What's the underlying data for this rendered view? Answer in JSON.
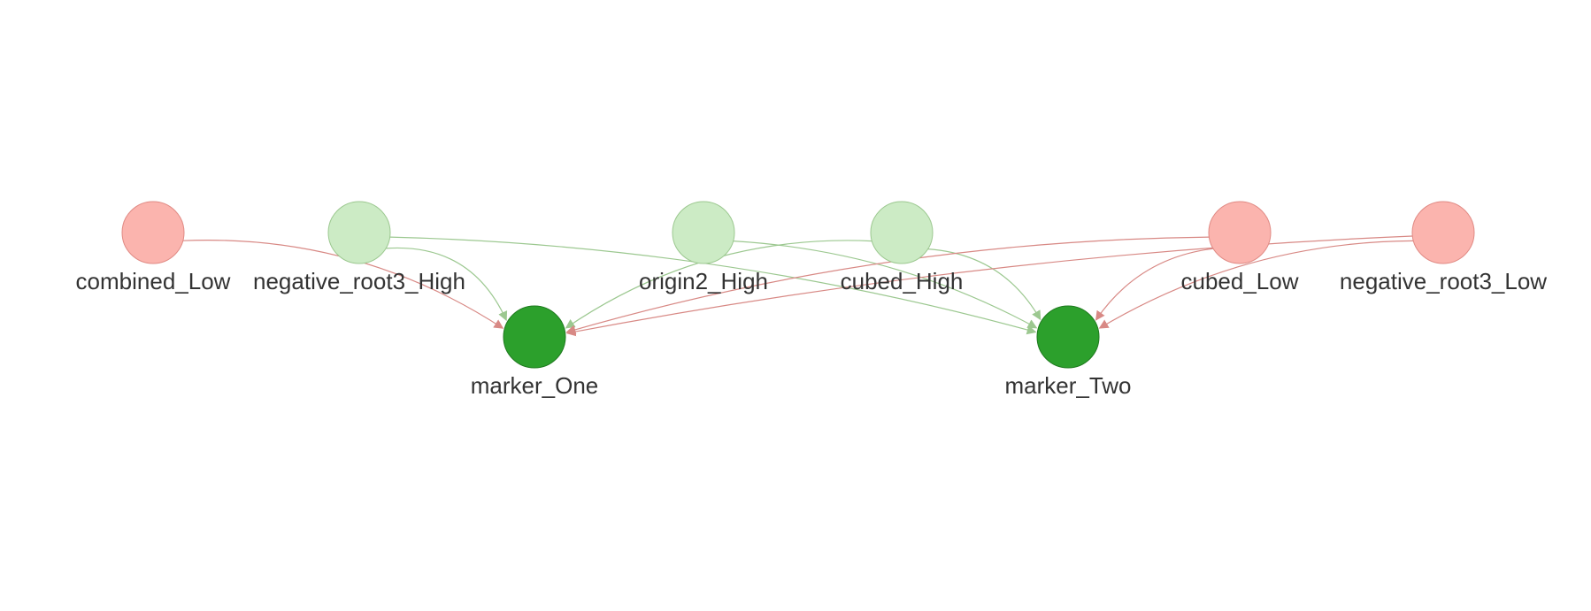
{
  "graph": {
    "colors": {
      "low_fill": "#fbb4ae",
      "low_stroke": "#e08a84",
      "high_fill": "#ccebc5",
      "high_stroke": "#9cc890",
      "marker_fill": "#2ca02c",
      "marker_stroke": "#1f7a1f",
      "edge_low": "#d88985",
      "edge_high": "#9cc890",
      "label": "#333333"
    },
    "nodes": [
      {
        "id": "combined_Low",
        "label": "combined_Low",
        "kind": "low"
      },
      {
        "id": "negative_root3_High",
        "label": "negative_root3_High",
        "kind": "high"
      },
      {
        "id": "origin2_High",
        "label": "origin2_High",
        "kind": "high"
      },
      {
        "id": "cubed_High",
        "label": "cubed_High",
        "kind": "high"
      },
      {
        "id": "cubed_Low",
        "label": "cubed_Low",
        "kind": "low"
      },
      {
        "id": "negative_root3_Low",
        "label": "negative_root3_Low",
        "kind": "low"
      },
      {
        "id": "marker_One",
        "label": "marker_One",
        "kind": "marker"
      },
      {
        "id": "marker_Two",
        "label": "marker_Two",
        "kind": "marker"
      }
    ],
    "edges": [
      {
        "from": "combined_Low",
        "to": "marker_One",
        "kind": "low"
      },
      {
        "from": "negative_root3_High",
        "to": "marker_One",
        "kind": "high"
      },
      {
        "from": "negative_root3_High",
        "to": "marker_Two",
        "kind": "high"
      },
      {
        "from": "origin2_High",
        "to": "marker_Two",
        "kind": "high"
      },
      {
        "from": "cubed_High",
        "to": "marker_One",
        "kind": "high"
      },
      {
        "from": "cubed_High",
        "to": "marker_Two",
        "kind": "high"
      },
      {
        "from": "cubed_Low",
        "to": "marker_One",
        "kind": "low"
      },
      {
        "from": "cubed_Low",
        "to": "marker_Two",
        "kind": "low"
      },
      {
        "from": "negative_root3_Low",
        "to": "marker_One",
        "kind": "low"
      },
      {
        "from": "negative_root3_Low",
        "to": "marker_Two",
        "kind": "low"
      }
    ]
  }
}
